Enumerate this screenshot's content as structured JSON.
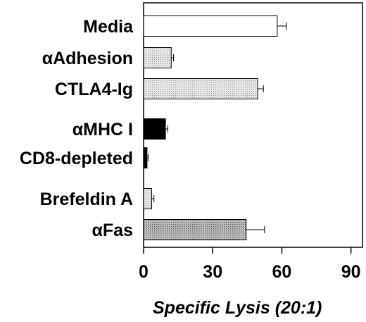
{
  "chart_data": {
    "type": "bar",
    "orientation": "horizontal",
    "categories": [
      "Media",
      "αAdhesion",
      "CTLA4-Ig",
      "αMHC I",
      "CD8-depleted",
      "Brefeldin A",
      "αFas"
    ],
    "values": [
      58,
      12,
      49.5,
      9.5,
      1.5,
      3.5,
      44.5
    ],
    "error": [
      4,
      1,
      2.5,
      1,
      0.5,
      1,
      8
    ],
    "xlabel": "Specific Lysis (20:1)",
    "xlim": [
      0,
      95
    ],
    "xticks": [
      0,
      30,
      60,
      90
    ],
    "xtick_labels": [
      "0",
      "30",
      "60",
      "90"
    ],
    "grid": false,
    "bar_fills": [
      "#ffffff",
      "#d4d4d4",
      "#d4d4d4",
      "#000000",
      "#000000",
      "#d4d4d4",
      "#b8b8b8"
    ]
  }
}
